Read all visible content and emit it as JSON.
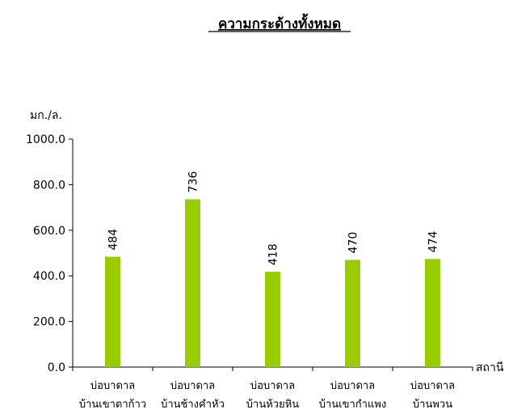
{
  "chart_data": {
    "type": "bar",
    "title": "ความกระด้างทั้งหมด",
    "ylabel": "มก./ล.",
    "xlabel": "สถานี",
    "ylim": [
      0,
      1000
    ],
    "yticks": [
      "0.0",
      "200.0",
      "400.0",
      "600.0",
      "800.0",
      "1000.0"
    ],
    "categories": [
      [
        "บ่อบาดาล",
        "บ้านเขาตาก้าว"
      ],
      [
        "บ่อบาดาล",
        "บ้านช้างคำหัว"
      ],
      [
        "บ่อบาดาล",
        "บ้านห้วยหิน"
      ],
      [
        "บ่อบาดาล",
        "บ้านเขากำแพง"
      ],
      [
        "บ่อบาดาล",
        "บ้านพวน"
      ]
    ],
    "values": [
      484,
      736,
      418,
      470,
      474
    ],
    "data_labels": [
      "484",
      "736",
      "418",
      "470",
      "474"
    ],
    "bar_color": "#99cc00",
    "grid": false,
    "legend": "none"
  }
}
